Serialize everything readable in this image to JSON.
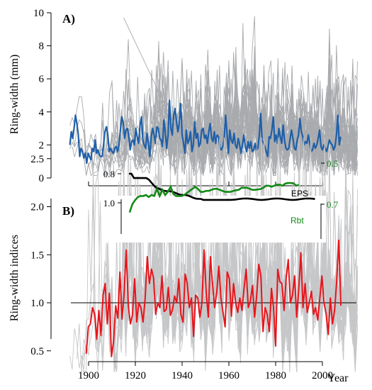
{
  "chart_data": [
    {
      "type": "line",
      "panel_label": "A)",
      "ylabel": "Ring-width (mm)",
      "ylim": [
        0,
        10
      ],
      "yticks": [
        "0",
        "2",
        "4",
        "6",
        "8",
        "10"
      ],
      "xlim": [
        1890,
        2016
      ],
      "colors": {
        "mean": "#1f5fa8",
        "individual": "#a9abae"
      },
      "series": [
        {
          "role": "mean",
          "x_start": 1892,
          "values": [
            2.0,
            2.8,
            2.4,
            3.0,
            3.8,
            3.3,
            2.6,
            1.3,
            1.8,
            1.6,
            1.2,
            1.5,
            0.9,
            1.5,
            1.3,
            1.1,
            1.8,
            1.6,
            2.3,
            1.5,
            1.7,
            1.4,
            1.3,
            1.3,
            2.0,
            2.8,
            3.1,
            2.6,
            1.6,
            1.8,
            1.6,
            1.5,
            1.8,
            1.9,
            1.6,
            2.0,
            2.9,
            3.7,
            3.4,
            2.4,
            2.9,
            3.0,
            2.5,
            1.7,
            2.2,
            2.3,
            2.0,
            3.0,
            2.5,
            2.1,
            3.2,
            3.7,
            2.3,
            2.0,
            1.8,
            2.7,
            2.1,
            1.3,
            2.5,
            3.0,
            2.6,
            2.1,
            3.1,
            3.0,
            2.4,
            2.3,
            1.9,
            3.5,
            2.8,
            1.8,
            2.6,
            4.7,
            3.0,
            2.6,
            3.8,
            4.2,
            3.4,
            2.8,
            3.3,
            4.5,
            2.6,
            2.1,
            1.5,
            2.9,
            2.1,
            2.3,
            2.8,
            1.6,
            2.0,
            3.4,
            2.4,
            2.7,
            1.9,
            2.1,
            2.9,
            3.0,
            2.4,
            2.6,
            2.1,
            2.8,
            3.3,
            2.4,
            2.2,
            2.8,
            2.1,
            2.6,
            2.5,
            1.8,
            1.7,
            1.9,
            2.4,
            3.8,
            2.7,
            1.5,
            2.9,
            2.3,
            2.1,
            2.7,
            2.0,
            1.8,
            2.4,
            2.0,
            1.5,
            2.0,
            2.6,
            1.9,
            1.6,
            2.2,
            1.8,
            2.2,
            1.6,
            1.7,
            2.1,
            1.7,
            1.8,
            2.6,
            3.9,
            2.3,
            2.1,
            1.9,
            1.6,
            1.3,
            2.5,
            2.4,
            2.9,
            3.7,
            2.2,
            2.6,
            2.1,
            3.0,
            2.5,
            2.1,
            3.2,
            2.3,
            1.8,
            1.7,
            1.8,
            2.4,
            2.9,
            2.4,
            1.8,
            1.7,
            2.3,
            2.6,
            3.6,
            2.8,
            2.5,
            2.0,
            2.2,
            2.1,
            2.6,
            2.1,
            1.6,
            1.7,
            2.1,
            1.8,
            2.0,
            2.4,
            2.9,
            1.9,
            1.7,
            2.0,
            1.8,
            1.6,
            1.9,
            2.3,
            2.1,
            2.0,
            1.7,
            1.9,
            2.6,
            3.8,
            2.0,
            2.5
          ]
        }
      ]
    },
    {
      "type": "line",
      "panel_label": "B)",
      "ylabel": "Ring-width indices",
      "xlabel": "Year",
      "ylim": [
        0.25,
        2.75
      ],
      "yticks": [
        "0.5",
        "1.0",
        "1.5",
        "2.0",
        "2.5"
      ],
      "xlim": [
        1890,
        2016
      ],
      "xticks": [
        "1900",
        "1920",
        "1940",
        "1960",
        "1980",
        "2000"
      ],
      "reference_line": 1.0,
      "colors": {
        "mean": "#e8141b",
        "individual": "#c6c7c9"
      },
      "series": [
        {
          "role": "mean",
          "x_start": 1899,
          "values": [
            0.47,
            0.75,
            0.78,
            0.95,
            0.88,
            0.62,
            0.92,
            0.66,
            1.08,
            1.2,
            0.78,
            1.1,
            0.44,
            0.6,
            0.97,
            0.84,
            1.32,
            0.83,
            1.1,
            1.55,
            0.97,
            0.78,
            0.88,
            1.25,
            0.8,
            1.0,
            0.95,
            0.8,
            1.05,
            1.48,
            1.2,
            1.35,
            1.26,
            0.88,
            1.0,
            0.95,
            1.28,
            0.91,
            0.93,
            1.16,
            0.87,
            0.93,
            1.07,
            1.0,
            1.25,
            0.88,
            0.8,
            1.3,
            1.2,
            0.95,
            1.05,
            0.65,
            1.08,
            1.05,
            0.85,
            1.0,
            1.55,
            1.1,
            0.85,
            1.48,
            1.2,
            0.95,
            1.1,
            1.38,
            1.05,
            0.9,
            0.75,
            1.32,
            1.25,
            0.86,
            1.2,
            1.0,
            0.9,
            1.05,
            0.92,
            1.15,
            1.35,
            0.95,
            1.02,
            1.18,
            0.85,
            1.08,
            1.4,
            1.28,
            0.7,
            0.95,
            0.88,
            0.7,
            1.15,
            0.95,
            0.55,
            1.35,
            1.22,
            1.2,
            0.92,
            1.25,
            1.45,
            1.0,
            1.08,
            1.28,
            0.85,
            1.15,
            1.52,
            0.95,
            1.2,
            0.9,
            1.0,
            1.12,
            0.88,
            0.95,
            0.82,
            1.05,
            1.28,
            1.0,
            0.88,
            0.67,
            1.05,
            0.78,
            0.92,
            1.22,
            1.65,
            0.97
          ]
        }
      ],
      "inset": {
        "series": [
          {
            "name": "EPS",
            "color": "#000000",
            "ylim": [
              0.76,
              1.02
            ],
            "yticks": [
              "1.0",
              "0.8"
            ]
          },
          {
            "name": "Rbt",
            "color": "#138a17",
            "ylim": [
              0.5,
              0.75
            ],
            "yticks": [
              "0.7",
              "0.5"
            ]
          }
        ]
      }
    }
  ]
}
